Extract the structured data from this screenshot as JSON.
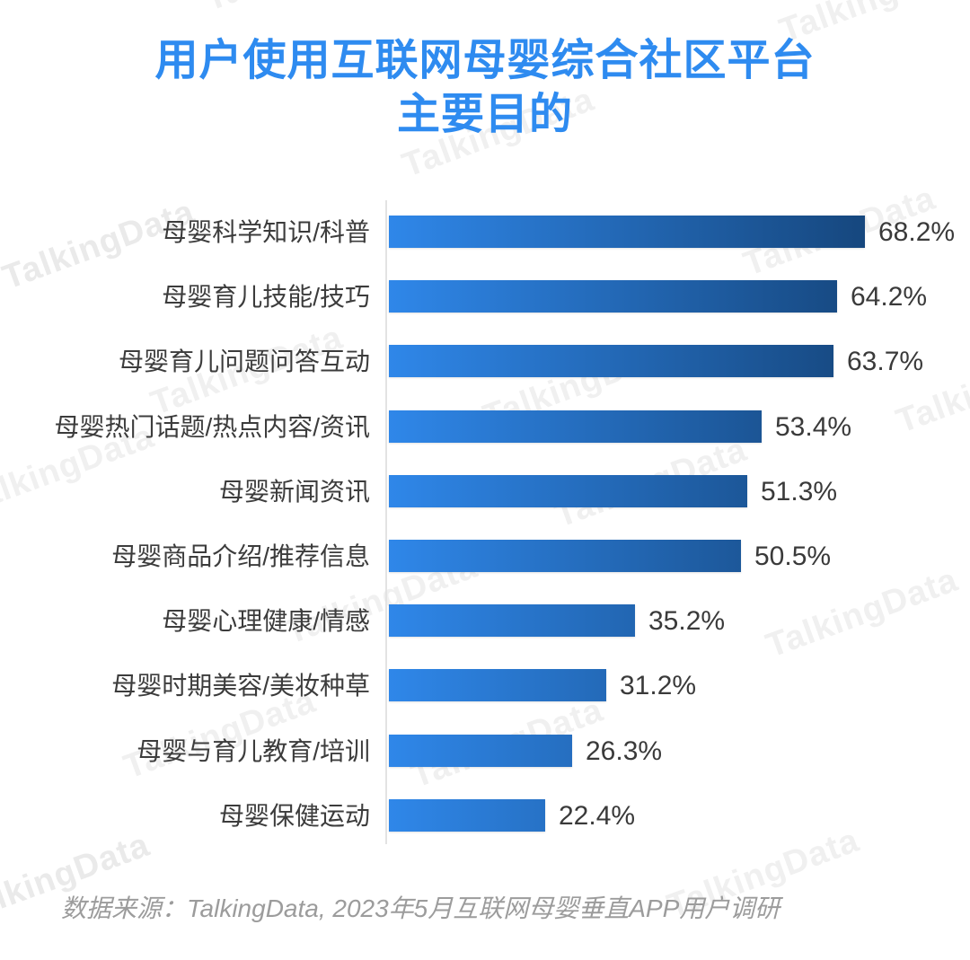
{
  "title": {
    "line1": "用户使用互联网母婴综合社区平台",
    "line2": "主要目的"
  },
  "source_note": "数据来源：TalkingData, 2023年5月互联网母婴垂直APP用户调研",
  "watermark_text": "TalkingData",
  "colors": {
    "title": "#2E8BF0",
    "bar_gradient_start": "#2F87E9",
    "bar_gradient_end": "#16477E",
    "category_label": "#3C3C3C",
    "value_label": "#3A3A3A",
    "axis_line": "#E3E3E3",
    "watermark": "#F0F0F0",
    "source_note": "#9C9C9C",
    "background": "#FFFFFF"
  },
  "chart_data": {
    "type": "bar",
    "orientation": "horizontal",
    "title": "用户使用互联网母婴综合社区平台主要目的",
    "unit": "%",
    "categories": [
      "母婴科学知识/科普",
      "母婴育儿技能/技巧",
      "母婴育儿问题问答互动",
      "母婴热门话题/热点内容/资讯",
      "母婴新闻资讯",
      "母婴商品介绍/推荐信息",
      "母婴心理健康/情感",
      "母婴时期美容/美妆种草",
      "母婴与育儿教育/培训",
      "母婴保健运动"
    ],
    "values": [
      68.2,
      64.2,
      63.7,
      53.4,
      51.3,
      50.5,
      35.2,
      31.2,
      26.3,
      22.4
    ],
    "value_labels": [
      "68.2%",
      "64.2%",
      "63.7%",
      "53.4%",
      "51.3%",
      "50.5%",
      "35.2%",
      "31.2%",
      "26.3%",
      "22.4%"
    ],
    "xlim": [
      0,
      68.2
    ],
    "grid": false,
    "legend": false,
    "sort": "descending"
  }
}
